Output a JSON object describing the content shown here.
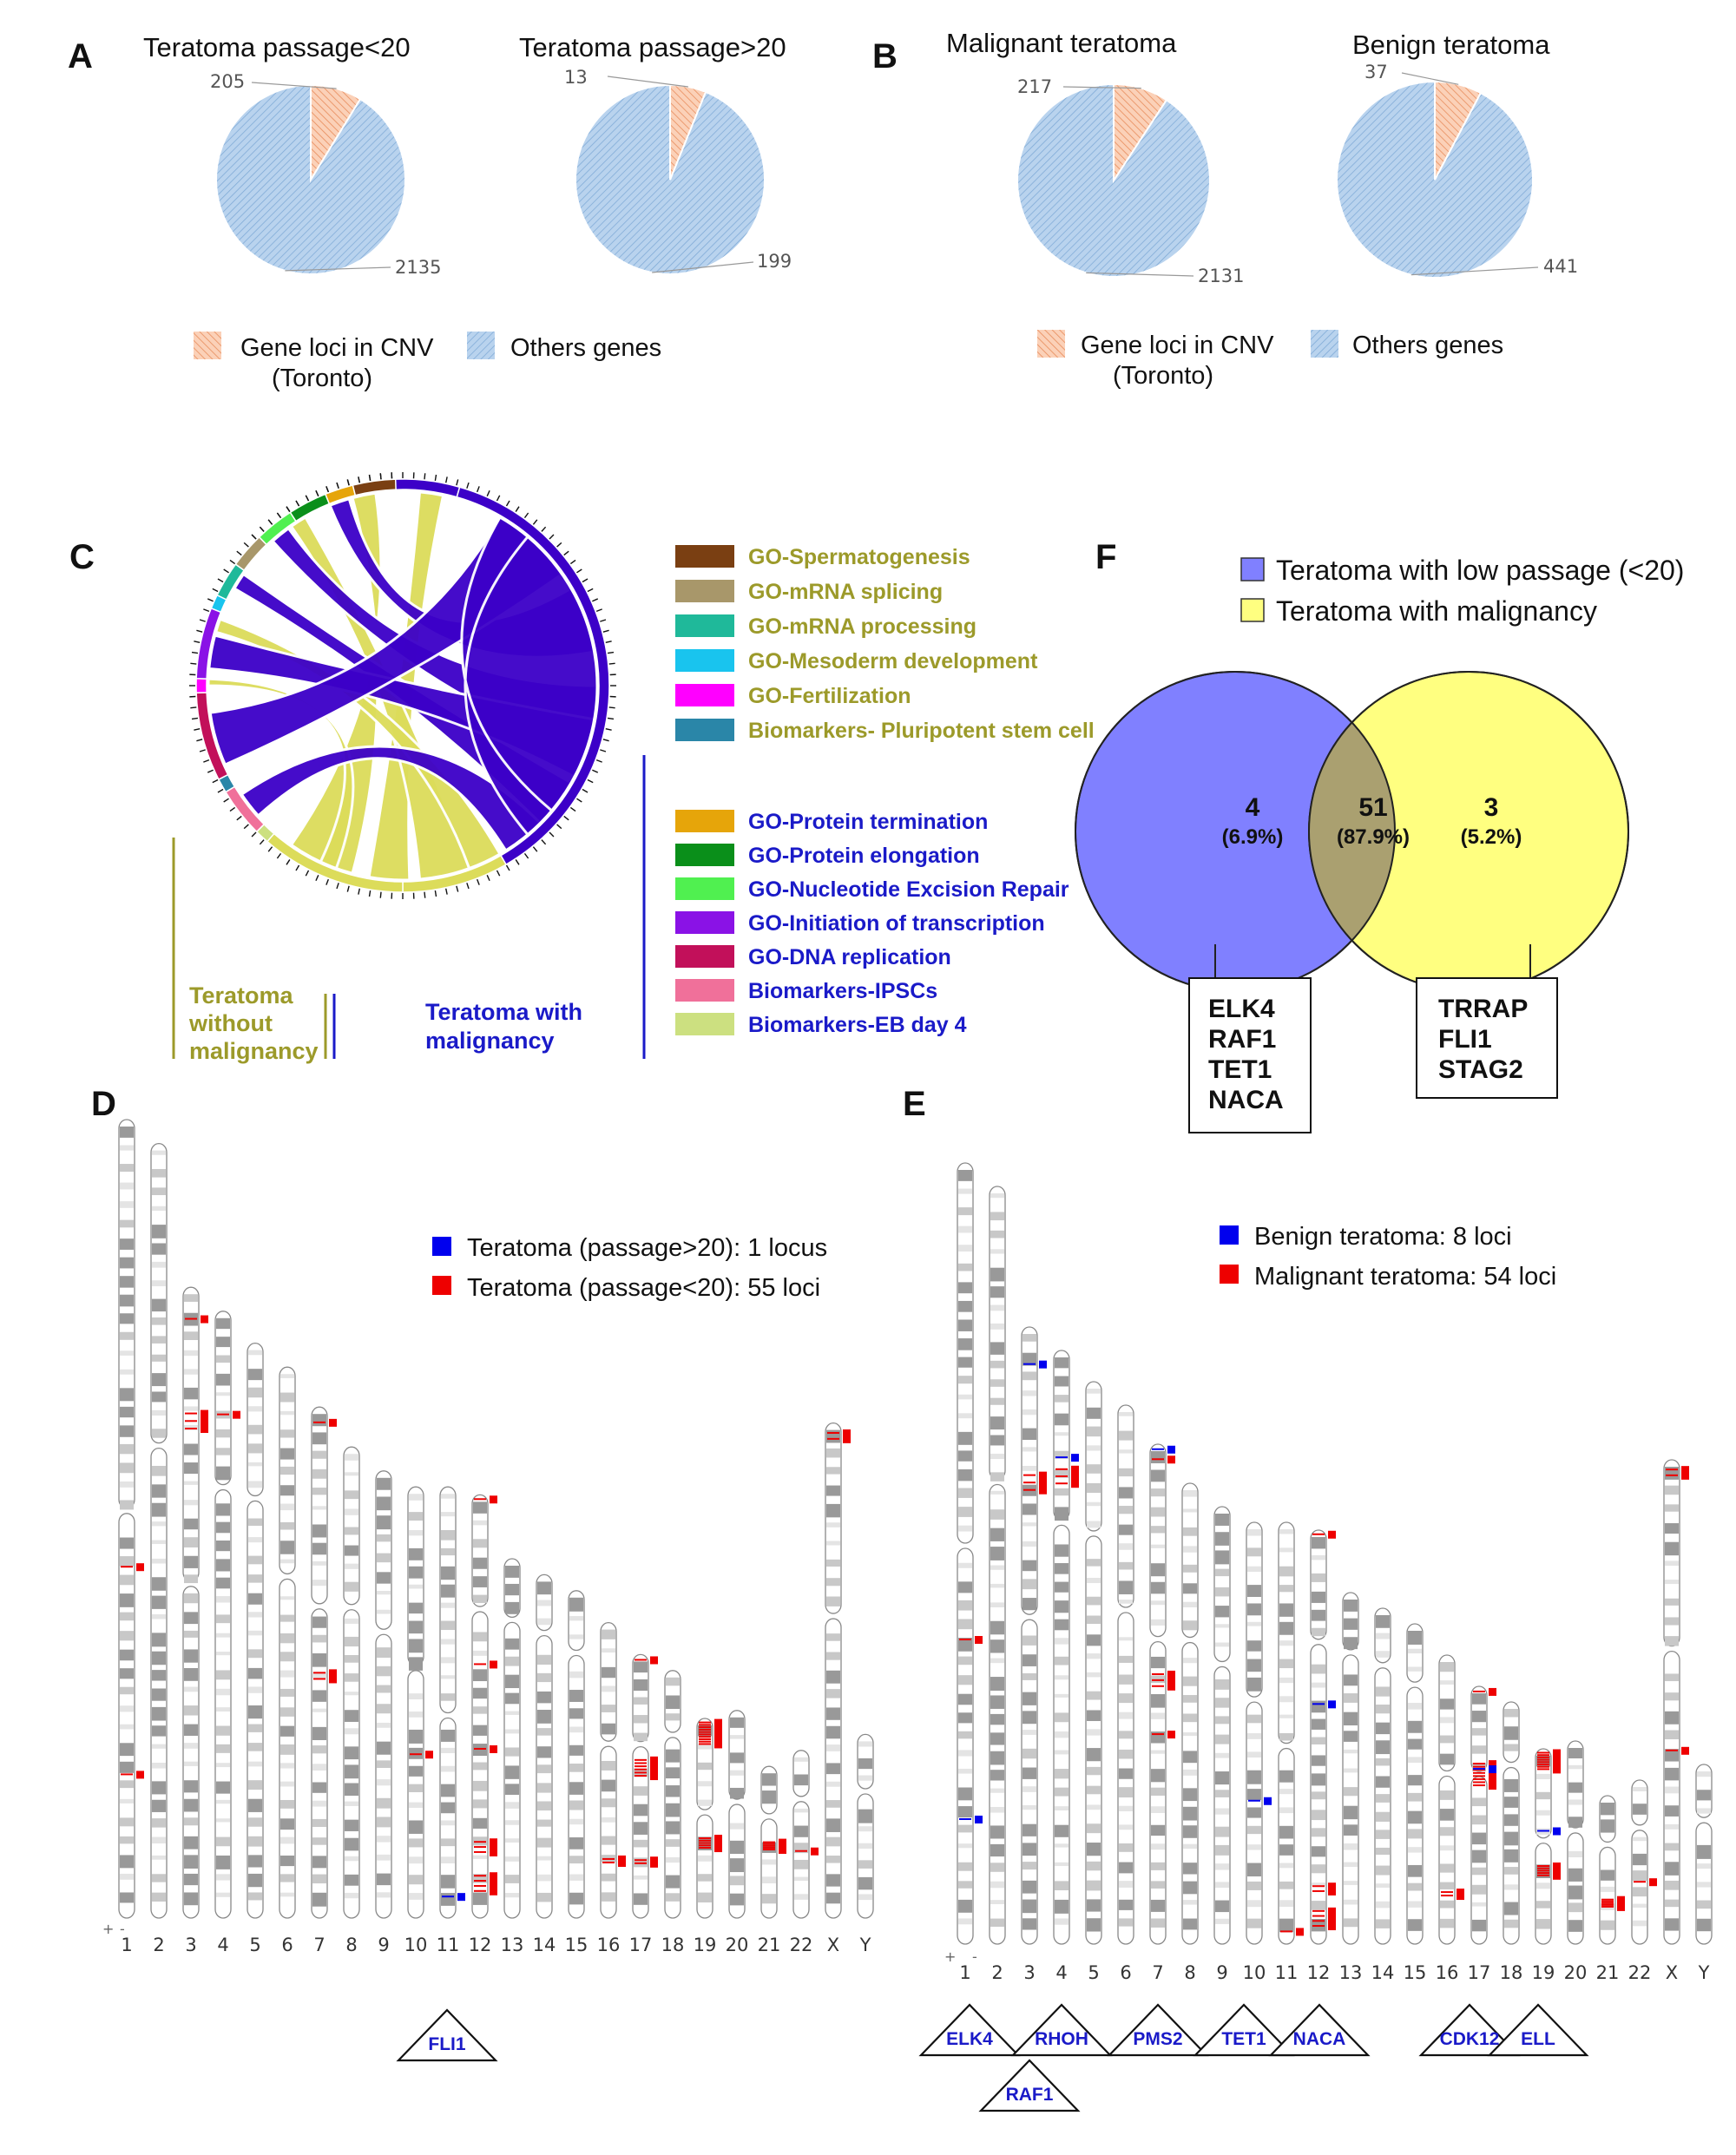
{
  "panels": {
    "A": "A",
    "B": "B",
    "C": "C",
    "D": "D",
    "E": "E",
    "F": "F"
  },
  "colors": {
    "cnv": "#f4a582",
    "others": "#a9c8e8",
    "olive": "#9c9a2a",
    "blue_text": "#1a1ac8",
    "chord_blue": "#3c00c8",
    "chord_yellow": "#dcdc5a",
    "venn_blue": "#8080ff",
    "venn_yellow": "#ffff80",
    "venn_overlap": "#aaa070",
    "mark_red": "#ee0000",
    "mark_blue": "#0000ee"
  },
  "panel_A": {
    "pies": [
      {
        "title": "Teratoma passage<20",
        "cnv": 205,
        "others": 2135
      },
      {
        "title": "Teratoma passage>20",
        "cnv": 13,
        "others": 199
      }
    ],
    "legend": {
      "cnv_line1": "Gene loci in CNV",
      "cnv_line2": "(Toronto)",
      "others": "Others genes"
    }
  },
  "panel_B": {
    "pies": [
      {
        "title": "Malignant teratoma",
        "cnv": 217,
        "others": 2131
      },
      {
        "title": "Benign teratoma",
        "cnv": 37,
        "others": 441
      }
    ],
    "legend": {
      "cnv_line1": "Gene loci in CNV",
      "cnv_line2": "(Toronto)",
      "others": "Others genes"
    }
  },
  "panel_C": {
    "legend_olive": [
      {
        "label": "GO-Spermatogenesis",
        "color": "#7a3f12"
      },
      {
        "label": "GO-mRNA  splicing",
        "color": "#a8976a"
      },
      {
        "label": "GO-mRNA  processing",
        "color": "#1fb99a"
      },
      {
        "label": "GO-Mesoderm development",
        "color": "#19c4ee"
      },
      {
        "label": "GO-Fertilization",
        "color": "#ff00ff"
      },
      {
        "label": "Biomarkers- Pluripotent stem cell",
        "color": "#2a86a8"
      }
    ],
    "legend_blue": [
      {
        "label": "GO-Protein termination",
        "color": "#e6a50a"
      },
      {
        "label": "GO-Protein elongation",
        "color": "#0a8f1a"
      },
      {
        "label": "GO-Nucleotide Excision Repair",
        "color": "#50f050"
      },
      {
        "label": "GO-Initiation of transcription",
        "color": "#8a12e6"
      },
      {
        "label": "GO-DNA replication",
        "color": "#c2105a"
      },
      {
        "label": "Biomarkers-IPSCs",
        "color": "#f0709a"
      },
      {
        "label": "Biomarkers-EB day 4",
        "color": "#cce080"
      }
    ],
    "group_left_1": "Teratoma",
    "group_left_2": "without",
    "group_left_3": "malignancy",
    "group_right_1": "Teratoma with",
    "group_right_2": "malignancy"
  },
  "panel_F": {
    "legend_blue": "Teratoma with low passage (<20)",
    "legend_yellow": "Teratoma with malignancy",
    "left_count": "4",
    "left_pct": "(6.9%)",
    "mid_count": "51",
    "mid_pct": "(87.9%)",
    "right_count": "3",
    "right_pct": "(5.2%)",
    "left_genes": [
      "ELK4",
      "RAF1",
      "TET1",
      "NACA"
    ],
    "right_genes": [
      "TRRAP",
      "FLI1",
      "STAG2"
    ]
  },
  "panel_D": {
    "legend_blue": "Teratoma (passage>20): 1 locus",
    "legend_red": "Teratoma (passage<20): 55 loci",
    "genes": [
      "FLI1"
    ]
  },
  "panel_E": {
    "legend_blue": "Benign  teratoma: 8 loci",
    "legend_red": "Malignant teratoma: 54 loci",
    "genes": [
      "ELK4",
      "RHOH",
      "RAF1",
      "PMS2",
      "TET1",
      "NACA",
      "CDK12",
      "ELL"
    ]
  },
  "chromosomes": [
    "1",
    "2",
    "3",
    "4",
    "5",
    "6",
    "7",
    "8",
    "9",
    "10",
    "11",
    "12",
    "13",
    "14",
    "15",
    "16",
    "17",
    "18",
    "19",
    "20",
    "21",
    "22",
    "X",
    "Y"
  ],
  "strand_plus": "+",
  "strand_minus": "-"
}
